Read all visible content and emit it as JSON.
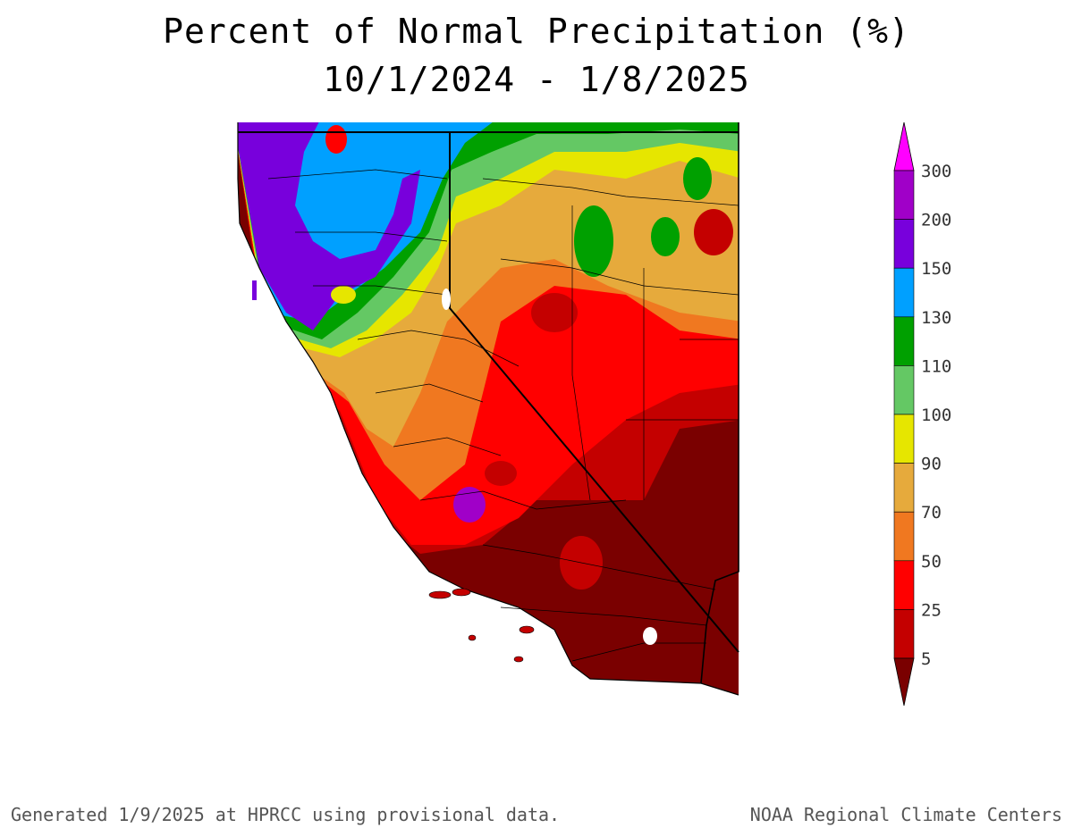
{
  "title": {
    "line1": "Percent of Normal Precipitation (%)",
    "line2": "10/1/2024 - 1/8/2025"
  },
  "legend": {
    "bins": [
      {
        "label": "5",
        "color": "#7a0000"
      },
      {
        "label": "25",
        "color": "#c40000"
      },
      {
        "label": "50",
        "color": "#ff0000"
      },
      {
        "label": "70",
        "color": "#f07820"
      },
      {
        "label": "90",
        "color": "#e6aa3c"
      },
      {
        "label": "100",
        "color": "#e6e600"
      },
      {
        "label": "110",
        "color": "#64c864"
      },
      {
        "label": "130",
        "color": "#00a000"
      },
      {
        "label": "150",
        "color": "#00a0ff"
      },
      {
        "label": "200",
        "color": "#7800dc"
      },
      {
        "label": "300",
        "color": "#a000c8"
      }
    ],
    "top_arrow_color": "#ff00ff",
    "bottom_arrow_color": "#7a0000"
  },
  "footer": {
    "left": "Generated 1/9/2025 at HPRCC using provisional data.",
    "right": "NOAA Regional Climate Centers"
  }
}
